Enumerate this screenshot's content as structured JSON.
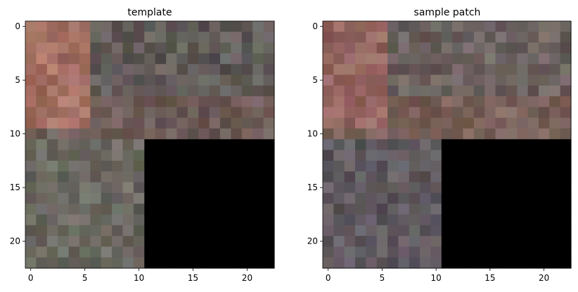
{
  "chart_data": [
    {
      "type": "heatmap",
      "title": "template",
      "grid_size": 23,
      "masked_region": {
        "rows_from": 11,
        "cols_from": 11,
        "color": "#000000"
      },
      "x_ticks": [
        "0",
        "5",
        "10",
        "15",
        "20"
      ],
      "y_ticks": [
        "0",
        "5",
        "10",
        "15",
        "20"
      ],
      "xlim": [
        -0.5,
        22.5
      ],
      "ylim": [
        22.5,
        -0.5
      ],
      "palette_by_region": {
        "top_left": "#a57063",
        "top_right": "#615c59",
        "band": "#6e5c58",
        "bottom_left": "#6c6a62"
      }
    },
    {
      "type": "heatmap",
      "title": "sample patch",
      "grid_size": 23,
      "masked_region": {
        "rows_from": 11,
        "cols_from": 11,
        "color": "#000000"
      },
      "x_ticks": [
        "0",
        "5",
        "10",
        "15",
        "20"
      ],
      "y_ticks": [
        "0",
        "5",
        "10",
        "15",
        "20"
      ],
      "xlim": [
        -0.5,
        22.5
      ],
      "ylim": [
        22.5,
        -0.5
      ],
      "palette_by_region": {
        "top_left": "#936560",
        "top_right": "#6d6360",
        "band": "#7a625a",
        "bottom_left": "#605a60"
      }
    }
  ]
}
